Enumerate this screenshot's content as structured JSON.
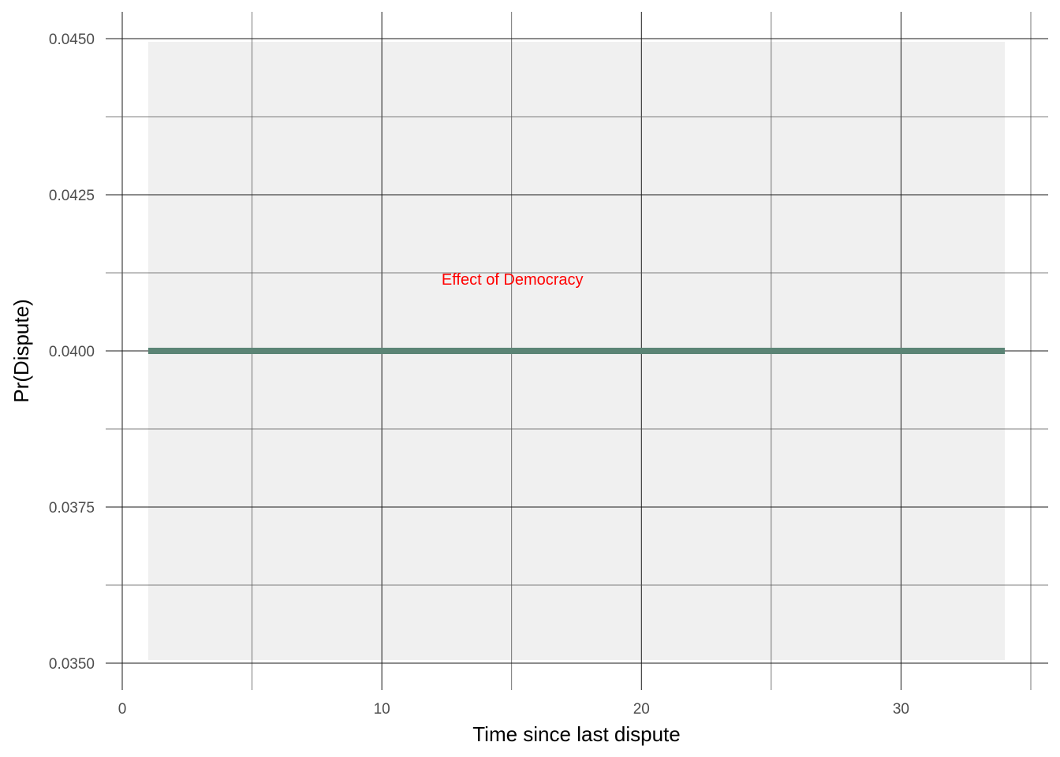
{
  "chart_data": {
    "type": "line",
    "title": "",
    "xlabel": "Time since last dispute",
    "ylabel": "Pr(Dispute)",
    "xlim": [
      0,
      35
    ],
    "ylim": [
      0.035,
      0.045
    ],
    "x_ticks": [
      0,
      10,
      20,
      30
    ],
    "x_tick_labels": [
      "0",
      "10",
      "20",
      "30"
    ],
    "x_minor_ticks": [
      5,
      15,
      25,
      35
    ],
    "y_ticks": [
      0.035,
      0.0375,
      0.04,
      0.0425,
      0.045
    ],
    "y_tick_labels": [
      "0.0350",
      "0.0375",
      "0.0400",
      "0.0425",
      "0.0450"
    ],
    "y_minor_ticks": [
      0.03625,
      0.03875,
      0.04125,
      0.04375
    ],
    "grid": true,
    "legend": "none",
    "band": {
      "x": [
        1,
        34
      ],
      "lower": 0.035,
      "upper": 0.045,
      "color": "#f0f0f0"
    },
    "series": [
      {
        "x": [
          1,
          34
        ],
        "y": [
          0.04,
          0.04
        ],
        "color": "#5b8475"
      }
    ],
    "annotations": [
      {
        "text": "Effect of Democracy",
        "x": 15,
        "y": 0.041,
        "color": "#ff0000"
      }
    ]
  }
}
